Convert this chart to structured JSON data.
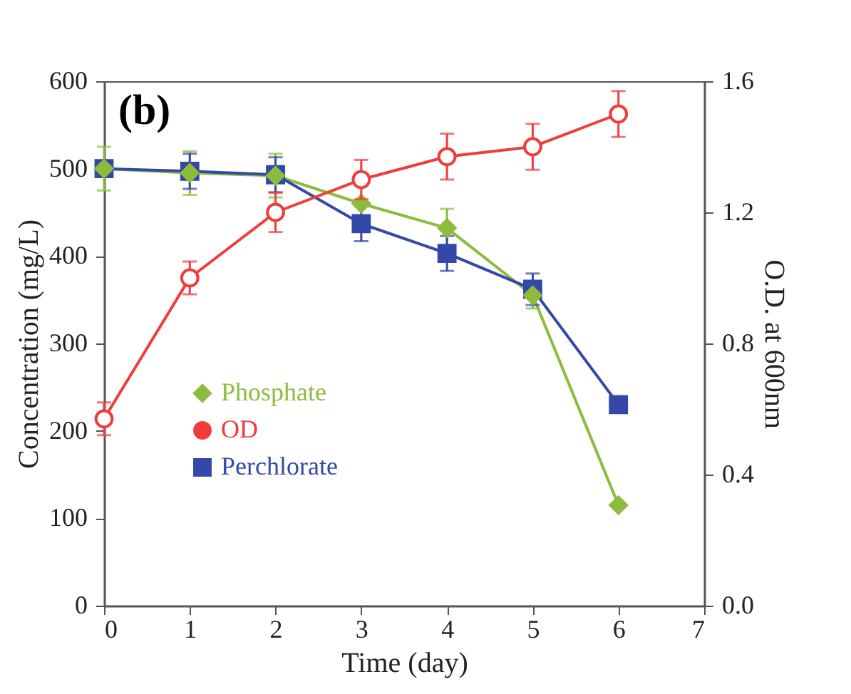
{
  "chart_data": {
    "type": "line",
    "annotations": [
      "(b)"
    ],
    "xlabel": "Time (day)",
    "ylabel": "Concentration (mg/L)",
    "y2label": "O.D. at 600nm",
    "x": [
      0,
      1,
      2,
      3,
      4,
      5,
      6
    ],
    "xlim": [
      0,
      7
    ],
    "xticks": [
      0,
      1,
      2,
      3,
      4,
      5,
      6,
      7
    ],
    "ylim": [
      0,
      600
    ],
    "yticks": [
      0,
      100,
      200,
      300,
      400,
      500,
      600
    ],
    "y2lim": [
      0,
      1.6
    ],
    "y2ticks": [
      {
        "value": 0,
        "label": "0.0"
      },
      0.4,
      0.8,
      1.2,
      1.6
    ],
    "grid": false,
    "legend": "left",
    "line_style": "solid",
    "series": [
      {
        "name": "Phosphate",
        "color": "#8cbc3c",
        "marker": "diamond",
        "values": [
          500,
          495,
          492,
          460,
          432,
          355,
          115
        ],
        "errors": [
          25,
          25,
          25,
          null,
          22,
          15,
          null
        ]
      },
      {
        "name": "OD",
        "color": "#f03c3c",
        "marker": "circle",
        "axis": "y2",
        "values": [
          0.57,
          1.0,
          1.2,
          1.3,
          1.37,
          1.4,
          1.5
        ],
        "errors": [
          0.05,
          0.05,
          0.06,
          0.06,
          0.07,
          0.07,
          0.07
        ]
      },
      {
        "name": "Perchlorate",
        "color": "#3348a8",
        "marker": "square",
        "values": [
          500,
          497,
          493,
          437,
          403,
          362,
          230
        ],
        "errors": [
          null,
          20,
          20,
          20,
          20,
          18,
          null
        ]
      }
    ]
  }
}
